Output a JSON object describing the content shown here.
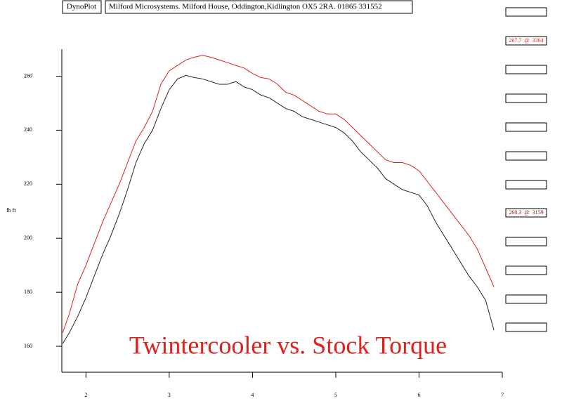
{
  "header": {
    "app": "DynoPlot",
    "company": "Milford Microsystems. Milford House, Oddington,Kidlington OX5 2RA. 01865 331552"
  },
  "readouts": [
    "267.7  @  3364",
    "260.3  @  3159"
  ],
  "chart_data": {
    "type": "line",
    "title": "Twintercooler vs. Stock Torque",
    "y_label": "lb ft",
    "x": [
      1.72,
      1.8,
      1.9,
      2.0,
      2.1,
      2.2,
      2.3,
      2.4,
      2.5,
      2.6,
      2.7,
      2.8,
      2.9,
      3.0,
      3.1,
      3.2,
      3.3,
      3.4,
      3.5,
      3.6,
      3.7,
      3.8,
      3.9,
      4.0,
      4.1,
      4.2,
      4.3,
      4.4,
      4.5,
      4.6,
      4.7,
      4.8,
      4.9,
      5.0,
      5.1,
      5.2,
      5.3,
      5.4,
      5.5,
      5.6,
      5.7,
      5.8,
      5.9,
      6.0,
      6.1,
      6.2,
      6.3,
      6.4,
      6.5,
      6.6,
      6.7,
      6.8,
      6.9
    ],
    "series": [
      {
        "color": "#e0201a",
        "values": [
          165,
          172,
          183,
          190,
          198,
          206,
          213,
          220,
          228,
          236,
          241,
          247,
          257,
          262,
          264,
          266,
          267,
          267.7,
          267,
          266,
          265,
          264,
          263,
          261,
          259.5,
          259,
          257,
          254,
          253,
          251,
          249,
          247,
          246,
          246,
          244,
          241,
          238,
          235,
          232,
          229,
          228,
          228,
          227,
          225,
          221,
          217,
          213,
          209,
          205,
          201,
          196,
          189,
          182
        ]
      },
      {
        "color": "#3a1a1a",
        "values": [
          161,
          165,
          171,
          178,
          186,
          194,
          201,
          209,
          218,
          228,
          235,
          240,
          248,
          255,
          259,
          260.3,
          259.5,
          259,
          258,
          257,
          257,
          258,
          256,
          255,
          253,
          252,
          250,
          248,
          247,
          245,
          244,
          243,
          242,
          241,
          239,
          236,
          232,
          229,
          226,
          222,
          220,
          218,
          217,
          216,
          212,
          206,
          201,
          196,
          191,
          186,
          182,
          177,
          166
        ]
      }
    ],
    "xlim": [
      1.71,
      7
    ],
    "xticks": [
      2,
      3,
      4,
      5,
      6,
      7
    ],
    "ylim": [
      150.4,
      270
    ],
    "yticks": [
      160,
      180,
      200,
      220,
      240,
      260
    ]
  }
}
